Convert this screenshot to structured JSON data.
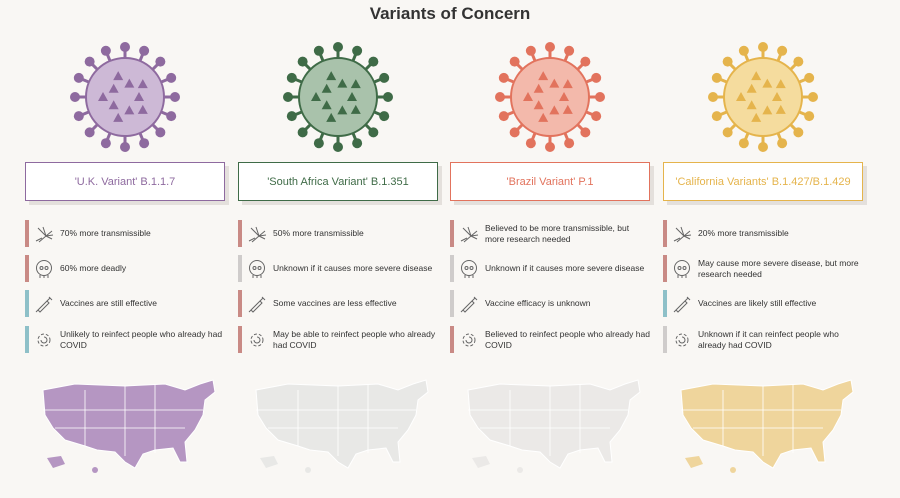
{
  "title": "Variants of Concern",
  "colors": {
    "red": "#c98a85",
    "gray": "#cfcccb",
    "teal": "#8ec0c8"
  },
  "variants": [
    {
      "name": "'U.K. Variant' B.1.1.7",
      "color": "#8e6a9f",
      "light": "#cdb9d6",
      "map_fill": "#b596c2",
      "facts": [
        {
          "icon": "spread-icon",
          "text": "70% more transmissible",
          "status": "red"
        },
        {
          "icon": "skull-icon",
          "text": "60% more deadly",
          "status": "red"
        },
        {
          "icon": "syringe-icon",
          "text": "Vaccines are still effective",
          "status": "teal"
        },
        {
          "icon": "gear-icon",
          "text": "Unlikely to reinfect people who already had COVID",
          "status": "teal"
        }
      ]
    },
    {
      "name": "'South Africa Variant' B.1.351",
      "color": "#3f6b47",
      "light": "#a9c2ab",
      "map_fill": "#e8e8e6",
      "facts": [
        {
          "icon": "spread-icon",
          "text": "50% more transmissible",
          "status": "red"
        },
        {
          "icon": "skull-icon",
          "text": "Unknown if it causes more severe disease",
          "status": "gray"
        },
        {
          "icon": "syringe-icon",
          "text": "Some vaccines are less effective",
          "status": "red"
        },
        {
          "icon": "gear-icon",
          "text": "May be able to reinfect people who already had COVID",
          "status": "red"
        }
      ]
    },
    {
      "name": "'Brazil Variant' P.1",
      "color": "#e2735d",
      "light": "#f3b9ab",
      "map_fill": "#ebe9e7",
      "facts": [
        {
          "icon": "spread-icon",
          "text": "Believed to be more transmissible, but more research needed",
          "status": "red"
        },
        {
          "icon": "skull-icon",
          "text": "Unknown if it causes more severe disease",
          "status": "gray"
        },
        {
          "icon": "syringe-icon",
          "text": "Vaccine efficacy is unknown",
          "status": "gray"
        },
        {
          "icon": "gear-icon",
          "text": "Believed to reinfect people who already had COVID",
          "status": "red"
        }
      ]
    },
    {
      "name": "'California Variants' B.1.427/B.1.429",
      "color": "#e5b44c",
      "light": "#f5dc9e",
      "map_fill": "#efd59c",
      "facts": [
        {
          "icon": "spread-icon",
          "text": "20% more transmissible",
          "status": "red"
        },
        {
          "icon": "skull-icon",
          "text": "May cause more severe disease, but more research needed",
          "status": "red"
        },
        {
          "icon": "syringe-icon",
          "text": "Vaccines are likely still effective",
          "status": "teal"
        },
        {
          "icon": "gear-icon",
          "text": "Unknown if it can reinfect people who already had COVID",
          "status": "gray"
        }
      ]
    }
  ]
}
